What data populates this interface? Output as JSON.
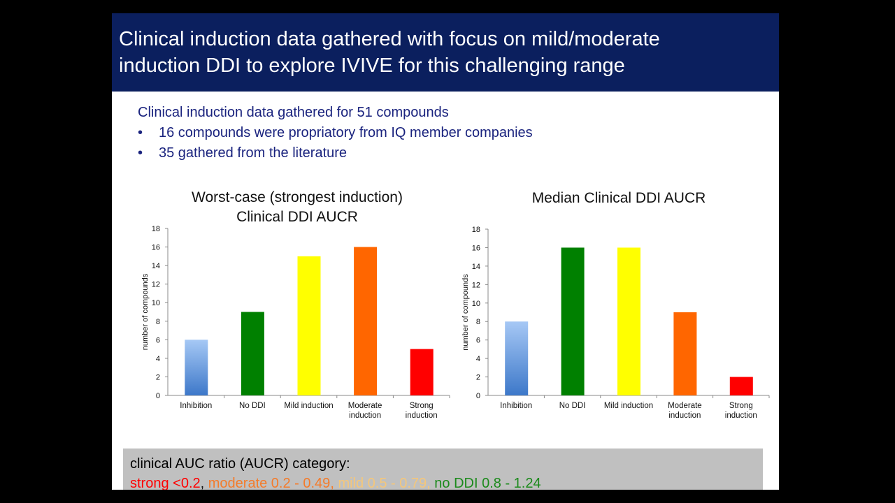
{
  "header": {
    "title_line1": "Clinical induction data gathered with focus on mild/moderate",
    "title_line2": "induction DDI to explore IVIVE for this challenging range"
  },
  "intro": {
    "lead": "Clinical induction data gathered for 51 compounds",
    "bullets": [
      "16 compounds were propriatory from IQ member companies",
      "35 gathered from the literature"
    ]
  },
  "legend": {
    "title": "clinical AUC ratio (AUCR) category:",
    "items": [
      {
        "text": "strong <0.2",
        "color": "#ff0000"
      },
      {
        "text": "moderate 0.2 - 0.49",
        "color": "#f47b2a"
      },
      {
        "text": "mild 0.5 - 0.79",
        "color": "#f5c77a"
      },
      {
        "text": "no DDI 0.8 - 1.24",
        "color": "#1b8a1b"
      }
    ]
  },
  "chart_data": [
    {
      "type": "bar",
      "title_line1": "Worst-case (strongest induction)",
      "title_line2": "Clinical DDI AUCR",
      "ylabel": "number of compounds",
      "ylim": [
        0,
        18
      ],
      "yticks": [
        0,
        2,
        4,
        6,
        8,
        10,
        12,
        14,
        16,
        18
      ],
      "categories": [
        "Inhibition",
        "No DDI",
        "Mild induction",
        "Moderate induction",
        "Strong induction"
      ],
      "values": [
        6,
        9,
        15,
        16,
        5
      ],
      "colors": [
        "#5a8fd6",
        "#008000",
        "#ffff00",
        "#ff6600",
        "#ff0000"
      ]
    },
    {
      "type": "bar",
      "title_line1": "Median Clinical DDI AUCR",
      "ylabel": "number of compounds",
      "ylim": [
        0,
        18
      ],
      "yticks": [
        0,
        2,
        4,
        6,
        8,
        10,
        12,
        14,
        16,
        18
      ],
      "categories": [
        "Inhibition",
        "No DDI",
        "Mild induction",
        "Moderate induction",
        "Strong induction"
      ],
      "values": [
        8,
        16,
        16,
        9,
        2
      ],
      "colors": [
        "#5a8fd6",
        "#008000",
        "#ffff00",
        "#ff6600",
        "#ff0000"
      ]
    }
  ]
}
